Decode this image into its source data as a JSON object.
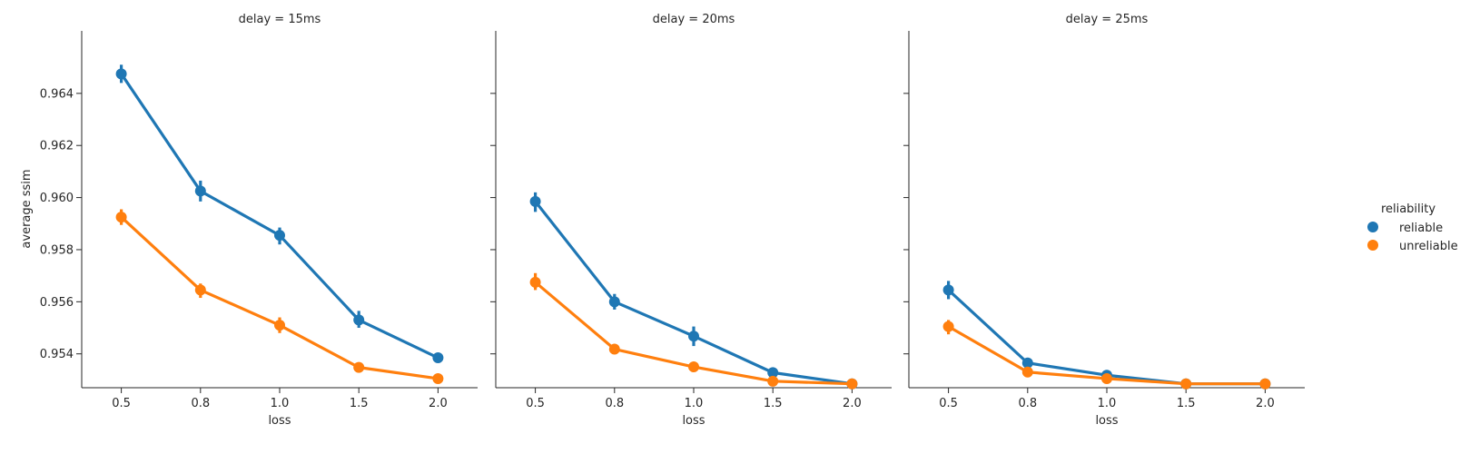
{
  "chart_data": {
    "type": "line",
    "ylabel": "average ssim",
    "xlabel": "loss",
    "categories": [
      "0.5",
      "0.8",
      "1.0",
      "1.5",
      "2.0"
    ],
    "ylim": [
      0.9527,
      0.9664
    ],
    "yticks": [
      "0.954",
      "0.956",
      "0.958",
      "0.960",
      "0.962",
      "0.964"
    ],
    "legend": {
      "title": "reliability",
      "placement": "right",
      "entries": [
        "reliable",
        "unreliable"
      ]
    },
    "colors": {
      "reliable": "#1f77b4",
      "unreliable": "#ff7f0e"
    },
    "panels": [
      {
        "title": "delay = 15ms",
        "series": [
          {
            "name": "reliable",
            "values": [
              0.96475,
              0.96025,
              0.95855,
              0.9553,
              0.95385
            ],
            "err": [
              [
                0.9644,
                0.9651
              ],
              [
                0.95985,
                0.96065
              ],
              [
                0.9582,
                0.95885
              ],
              [
                0.955,
                0.95565
              ],
              [
                0.95375,
                0.95395
              ]
            ]
          },
          {
            "name": "unreliable",
            "values": [
              0.95925,
              0.95645,
              0.9551,
              0.95348,
              0.95305
            ],
            "err": [
              [
                0.95895,
                0.95955
              ],
              [
                0.95615,
                0.9567
              ],
              [
                0.9548,
                0.9554
              ],
              [
                0.9534,
                0.95356
              ],
              [
                0.95298,
                0.95312
              ]
            ]
          }
        ]
      },
      {
        "title": "delay = 20ms",
        "series": [
          {
            "name": "reliable",
            "values": [
              0.95985,
              0.956,
              0.95468,
              0.95328,
              0.95285
            ],
            "err": [
              [
                0.95945,
                0.9602
              ],
              [
                0.9557,
                0.9563
              ],
              [
                0.9543,
                0.95505
              ],
              [
                0.9532,
                0.95336
              ],
              [
                0.9528,
                0.9529
              ]
            ]
          },
          {
            "name": "unreliable",
            "values": [
              0.95675,
              0.95418,
              0.9535,
              0.95295,
              0.95285
            ],
            "err": [
              [
                0.95645,
                0.9571
              ],
              [
                0.954,
                0.95435
              ],
              [
                0.9534,
                0.9536
              ],
              [
                0.95288,
                0.95302
              ],
              [
                0.9528,
                0.9529
              ]
            ]
          }
        ]
      },
      {
        "title": "delay = 25ms",
        "series": [
          {
            "name": "reliable",
            "values": [
              0.95645,
              0.95365,
              0.95318,
              0.95285,
              0.95285
            ],
            "err": [
              [
                0.9561,
                0.9568
              ],
              [
                0.95358,
                0.95372
              ],
              [
                0.9531,
                0.95326
              ],
              [
                0.9528,
                0.9529
              ],
              [
                0.9528,
                0.9529
              ]
            ]
          },
          {
            "name": "unreliable",
            "values": [
              0.95505,
              0.9533,
              0.95305,
              0.95285,
              0.95285
            ],
            "err": [
              [
                0.95475,
                0.9553
              ],
              [
                0.95322,
                0.95338
              ],
              [
                0.95298,
                0.95312
              ],
              [
                0.9528,
                0.9529
              ],
              [
                0.9528,
                0.9529
              ]
            ]
          }
        ]
      }
    ]
  }
}
